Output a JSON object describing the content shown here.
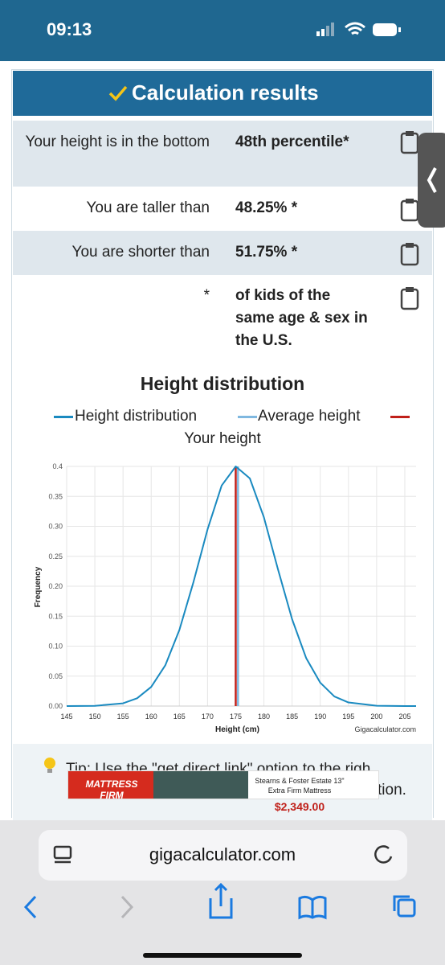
{
  "status": {
    "time": "09:13"
  },
  "results": {
    "title": "Calculation results",
    "rows": [
      {
        "label": "Your height is in the bottom",
        "value": "48th percentile*"
      },
      {
        "label": "You are taller than",
        "value": "48.25% *"
      },
      {
        "label": "You are shorter than",
        "value": "51.75% *"
      },
      {
        "label": "*",
        "value": "of kids of the same age & sex in the U.S."
      }
    ]
  },
  "chart_data": {
    "type": "line",
    "title": "Height distribution",
    "x_label": "Height (cm)",
    "y_label": "Frequency",
    "credit": "Gigacalculator.com",
    "series": [
      {
        "name": "Height distribution",
        "color": "#1a8ac0",
        "x": [
          145,
          150,
          155,
          157.5,
          160,
          162.5,
          165,
          167.5,
          170,
          172.5,
          175,
          177.5,
          180,
          182.5,
          185,
          187.5,
          190,
          192.5,
          195,
          200,
          205,
          207
        ],
        "values": [
          0,
          0.0004,
          0.0046,
          0.013,
          0.032,
          0.068,
          0.127,
          0.207,
          0.295,
          0.368,
          0.4,
          0.38,
          0.315,
          0.228,
          0.145,
          0.08,
          0.039,
          0.016,
          0.006,
          0.0005,
          0,
          0
        ]
      },
      {
        "name": "Average height",
        "color": "#7fb8e0",
        "x": [
          175.4,
          175.4
        ],
        "values": [
          0,
          0.4
        ]
      },
      {
        "name": "Your height",
        "color": "#c0201a",
        "x": [
          175.0,
          175.0
        ],
        "values": [
          0,
          0.4
        ]
      }
    ],
    "xlim": [
      145,
      207
    ],
    "ylim": [
      0,
      0.4
    ],
    "xticks": [
      145,
      150,
      155,
      160,
      165,
      170,
      175,
      180,
      185,
      190,
      195,
      200,
      205
    ],
    "yticks": [
      {
        "value": 0,
        "label": "0.00"
      },
      {
        "value": 0.05,
        "label": "0.05"
      },
      {
        "value": 0.1,
        "label": "0.10"
      },
      {
        "value": 0.15,
        "label": "0.15"
      },
      {
        "value": 0.2,
        "label": "0.20"
      },
      {
        "value": 0.25,
        "label": "0.25"
      },
      {
        "value": 0.3,
        "label": "0.30"
      },
      {
        "value": 0.35,
        "label": "0.35"
      },
      0.4
    ],
    "grid": true
  },
  "tip": {
    "text": "Tip: Use the \"get direct link\" option to the righ",
    "tail": "tion."
  },
  "ad": {
    "brand": "MATTRESS FIRM",
    "product": "Stearns & Foster Estate 13\" Extra Firm Mattress",
    "price": "$2,349.00"
  },
  "browser": {
    "url": "gigacalculator.com"
  }
}
